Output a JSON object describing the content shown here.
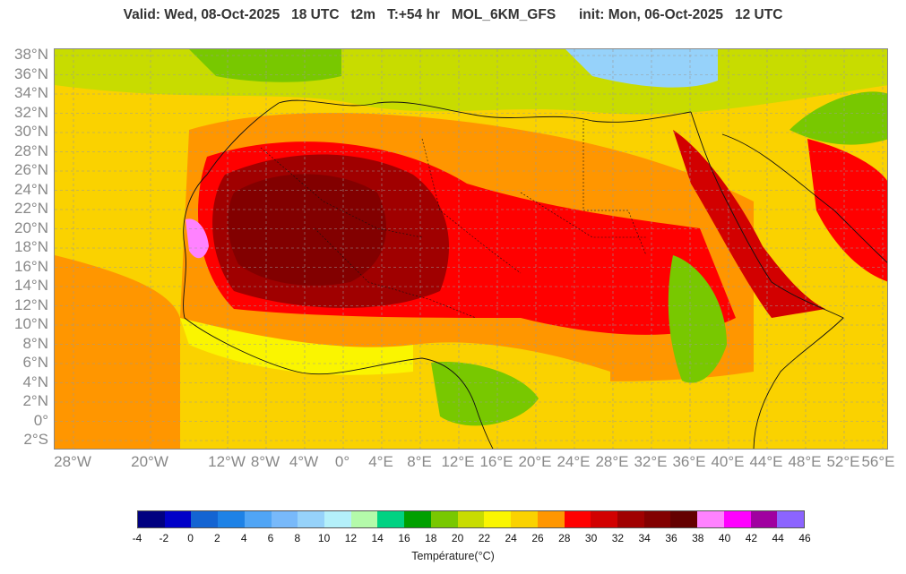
{
  "header": {
    "valid": "Valid: Wed, 08-Oct-2025",
    "valid_hour": "18 UTC",
    "variable": "t2m",
    "lead": "T:+54 hr",
    "model": "MOL_6KM_GFS",
    "init": "init: Mon, 06-Oct-2025",
    "init_hour": "12 UTC"
  },
  "map": {
    "lat_labels": [
      "38°N",
      "36°N",
      "34°N",
      "32°N",
      "30°N",
      "28°N",
      "26°N",
      "24°N",
      "22°N",
      "20°N",
      "18°N",
      "16°N",
      "14°N",
      "12°N",
      "10°N",
      "8°N",
      "6°N",
      "4°N",
      "2°N",
      "0°",
      "2°S"
    ],
    "lon_labels": [
      "28°W",
      "20°W",
      "12°W",
      "8°W",
      "4°W",
      "0°",
      "4°E",
      "8°E",
      "12°E",
      "16°E",
      "20°E",
      "24°E",
      "28°E",
      "32°E",
      "36°E",
      "40°E",
      "44°E",
      "48°E",
      "52°E",
      "56°E"
    ]
  },
  "colorbar": {
    "title": "Température(°C)",
    "ticks": [
      "-4",
      "-2",
      "0",
      "2",
      "4",
      "6",
      "8",
      "10",
      "12",
      "14",
      "16",
      "18",
      "20",
      "22",
      "24",
      "26",
      "28",
      "30",
      "32",
      "34",
      "36",
      "38",
      "40",
      "42",
      "44",
      "46"
    ],
    "colors": [
      "#000080",
      "#0000c8",
      "#1464d2",
      "#1e82e6",
      "#50a5f5",
      "#78b9fa",
      "#96d2fa",
      "#b4f0fa",
      "#b4faaa",
      "#00d282",
      "#00a000",
      "#78c800",
      "#c8dc00",
      "#faf500",
      "#fad200",
      "#ff9600",
      "#ff0000",
      "#d20000",
      "#a00000",
      "#820000",
      "#640000",
      "#ff82ff",
      "#ff00ff",
      "#a000a0",
      "#8c64ff"
    ]
  }
}
